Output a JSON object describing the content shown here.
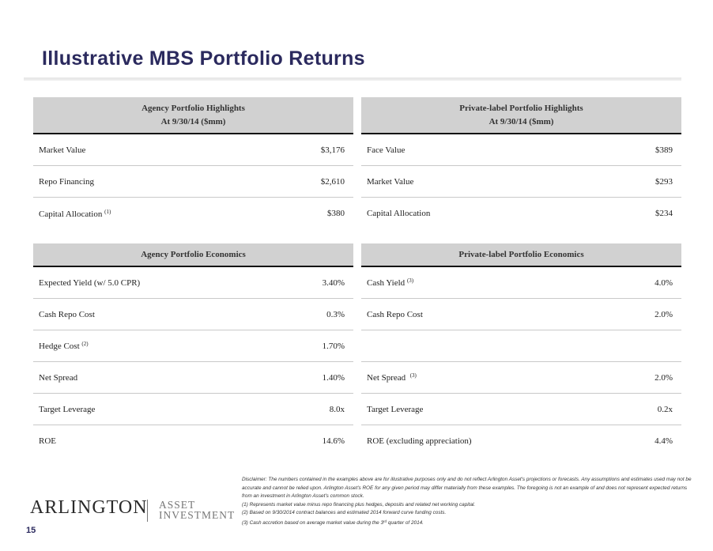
{
  "title": "Illustrative MBS Portfolio Returns",
  "agency_highlights": {
    "header_line1": "Agency Portfolio Highlights",
    "header_line2": "At 9/30/14 ($mm)",
    "rows": [
      {
        "label": "Market Value",
        "note": "",
        "value": "$3,176"
      },
      {
        "label": "Repo Financing",
        "note": "",
        "value": "$2,610"
      },
      {
        "label": "Capital Allocation",
        "note": "(1)",
        "value": "$380"
      }
    ]
  },
  "private_highlights": {
    "header_line1": "Private-label Portfolio Highlights",
    "header_line2": "At 9/30/14 ($mm)",
    "rows": [
      {
        "label": "Face Value",
        "note": "",
        "value": "$389"
      },
      {
        "label": "Market Value",
        "note": "",
        "value": "$293"
      },
      {
        "label": "Capital Allocation",
        "note": "",
        "value": "$234"
      }
    ]
  },
  "agency_economics": {
    "header": "Agency Portfolio Economics",
    "rows": [
      {
        "label": "Expected Yield  (w/ 5.0 CPR)",
        "note": "",
        "value": "3.40%"
      },
      {
        "label": "Cash Repo Cost",
        "note": "",
        "value": "0.3%"
      },
      {
        "label": "Hedge  Cost",
        "note": "(2)",
        "value": "1.70%"
      },
      {
        "label": "Net Spread",
        "note": "",
        "value": "1.40%"
      },
      {
        "label": "Target Leverage",
        "note": "",
        "value": "8.0x"
      },
      {
        "label": "ROE",
        "note": "",
        "value": "14.6%"
      }
    ]
  },
  "private_economics": {
    "header": "Private-label Portfolio Economics",
    "rows": [
      {
        "label": "Cash  Yield",
        "note": "(3)",
        "value": "4.0%"
      },
      {
        "label": "Cash Repo Cost",
        "note": "",
        "value": "2.0%"
      },
      {
        "label": "",
        "note": "",
        "value": ""
      },
      {
        "label": "Net Spread",
        "note": "(3)",
        "value": "2.0%"
      },
      {
        "label": "Target Leverage",
        "note": "",
        "value": "0.2x"
      },
      {
        "label": "ROE  (excluding appreciation)",
        "note": "",
        "value": "4.4%"
      }
    ]
  },
  "disclaimer": {
    "line1": "Disclaimer: The numbers contained in the examples above are for illustrative purposes only and do not reflect Arlington Asset's projections or forecasts.  Any assumptions and estimates used may not be accurate and cannot be relied upon.  Arlington Asset's ROE for any given period may differ materially from these examples.  The foregoing is not an example of and does not represent expected returns from an investment in Arlington Asset's common stock.",
    "note1": "(1) Represents market value minus repo financing plus hedges, deposits and related net working capital.",
    "note2": "(2) Based on 9/30/2014 contract balances and estimated 2014 forward curve funding costs.",
    "note3_pre": "(3) Cash accretion based on average market value during the 3",
    "note3_sup": "rd",
    "note3_post": " quarter of 2014."
  },
  "logo": {
    "main": "ARLINGTON",
    "sub_line1": "ASSET",
    "sub_line2": "INVESTMENT"
  },
  "page_number": "15"
}
